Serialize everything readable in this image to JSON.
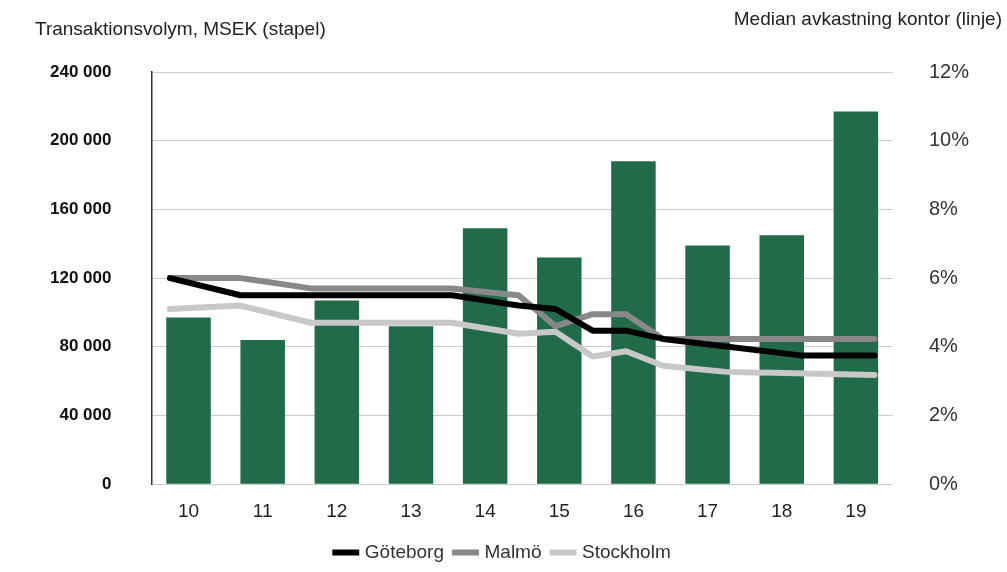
{
  "chart_data": {
    "type": "bar",
    "ylabel": "Transaktionsvolym, MSEK (stapel)",
    "y2label": "Median avkastning kontor (linje)",
    "x": [
      10,
      11,
      12,
      13,
      14,
      15,
      16,
      17,
      18,
      19
    ],
    "xlim": [
      9.5,
      19.5
    ],
    "xticks": [
      10,
      11,
      12,
      13,
      14,
      15,
      16,
      17,
      18,
      19
    ],
    "series": [
      {
        "color": "#1f6b4a",
        "values": [
          97000,
          84000,
          107000,
          92000,
          149000,
          132000,
          188000,
          139000,
          145000,
          217000
        ]
      },
      {
        "type": "line",
        "name": "Göteborg",
        "axis": "y2",
        "color": "#000000",
        "x": [
          9.75,
          10.7,
          13.55,
          14.45,
          14.95,
          15.45,
          15.9,
          16.4,
          18.25,
          19.25
        ],
        "values": [
          6.0,
          5.5,
          5.5,
          5.2,
          5.1,
          4.47,
          4.47,
          4.23,
          3.75,
          3.75
        ]
      },
      {
        "type": "line",
        "name": "Malmö",
        "axis": "y2",
        "color": "#888888",
        "x": [
          9.75,
          10.7,
          11.65,
          13.55,
          14.45,
          14.95,
          15.45,
          15.9,
          16.4,
          19.25
        ],
        "values": [
          6.0,
          6.0,
          5.7,
          5.7,
          5.5,
          4.6,
          4.95,
          4.95,
          4.23,
          4.23
        ]
      },
      {
        "type": "line",
        "name": "Stockholm",
        "axis": "y2",
        "color": "#c8c8c8",
        "x": [
          9.75,
          10.7,
          11.65,
          13.55,
          14.45,
          14.95,
          15.45,
          15.9,
          16.4,
          17.25,
          19.25
        ],
        "values": [
          5.1,
          5.2,
          4.7,
          4.7,
          4.38,
          4.44,
          3.72,
          3.87,
          3.45,
          3.27,
          3.18
        ]
      }
    ],
    "ylim": [
      0,
      240000
    ],
    "yticks": [
      0,
      {
        "value": 40000,
        "label": "40 000"
      },
      {
        "value": 80000,
        "label": "80 000"
      },
      {
        "value": 120000,
        "label": "120 000"
      },
      {
        "value": 160000,
        "label": "160 000"
      },
      {
        "value": 200000,
        "label": "200 000"
      },
      {
        "value": 240000,
        "label": "240 000"
      }
    ],
    "y2lim": [
      0,
      12
    ],
    "y2ticks": [
      {
        "value": 0,
        "label": "0%"
      },
      {
        "value": 2,
        "label": "2%"
      },
      {
        "value": 4,
        "label": "4%"
      },
      {
        "value": 6,
        "label": "6%"
      },
      {
        "value": 8,
        "label": "8%"
      },
      {
        "value": 10,
        "label": "10%"
      },
      {
        "value": 12,
        "label": "12%"
      }
    ],
    "grid": "y",
    "legend": "bottom",
    "marker": "none",
    "line_style": "solid"
  }
}
